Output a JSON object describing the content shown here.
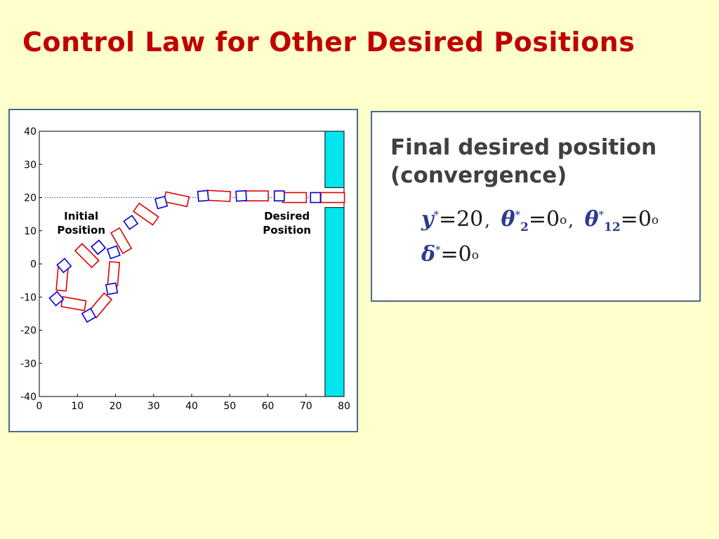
{
  "slide": {
    "title": "Control Law for Other Desired Positions"
  },
  "info": {
    "heading_line1": "Final desired position",
    "heading_line2": "(convergence)",
    "equations": [
      {
        "symbol": "y",
        "sup": "*",
        "sub": "",
        "value": "20"
      },
      {
        "symbol": "θ",
        "sup": "*",
        "sub": "2",
        "value": "0",
        "unit": "o"
      },
      {
        "symbol": "θ",
        "sup": "*",
        "sub": "12",
        "value": "0",
        "unit": "o"
      },
      {
        "symbol": "δ",
        "sup": "*",
        "sub": "",
        "value": "0",
        "unit": "o"
      }
    ],
    "sep": ","
  },
  "colors": {
    "title": "#c00000",
    "trailer": "#e00000",
    "truck": "#0000dd",
    "dock": "#00e5ee",
    "reference_line": "#0000cc"
  },
  "chart_data": {
    "type": "scatter",
    "title": "",
    "xlabel": "",
    "ylabel": "",
    "xlim": [
      0,
      80
    ],
    "ylim": [
      -40,
      40
    ],
    "xticks": [
      0,
      10,
      20,
      30,
      40,
      50,
      60,
      70,
      80
    ],
    "yticks": [
      40,
      30,
      20,
      10,
      0,
      -10,
      -20,
      -30,
      -40
    ],
    "grid": false,
    "reference_line_y": 20,
    "dock": {
      "x_from": 75,
      "x_to": 80,
      "y_from": -40,
      "y_to": 40,
      "gap_y": [
        17,
        23
      ]
    },
    "annotations": [
      {
        "line1": "Initial",
        "line2": "Position",
        "x": 11,
        "y": 12.5
      },
      {
        "line1": "Desired",
        "line2": "Position",
        "x": 65,
        "y": 12.5
      }
    ],
    "series": [
      {
        "type": "truck-trailer-poses",
        "values": [
          {
            "truck_x": 4.5,
            "truck_y": -10.5,
            "truck_angle": 40,
            "trailer_cx": 9,
            "trailer_cy": -12,
            "trailer_angle": -10
          },
          {
            "truck_x": 6.5,
            "truck_y": -0.5,
            "truck_angle": 40,
            "trailer_cx": 6,
            "trailer_cy": -4.5,
            "trailer_angle": 85
          },
          {
            "truck_x": 13,
            "truck_y": -15.5,
            "truck_angle": 30,
            "trailer_cx": 16,
            "trailer_cy": -12.5,
            "trailer_angle": 50
          },
          {
            "truck_x": 15.5,
            "truck_y": 5,
            "truck_angle": 40,
            "trailer_cx": 12.5,
            "trailer_cy": 2.5,
            "trailer_angle": -45
          },
          {
            "truck_x": 19,
            "truck_y": -7.5,
            "truck_angle": 10,
            "trailer_cx": 19.5,
            "trailer_cy": -3,
            "trailer_angle": 85
          },
          {
            "truck_x": 19.5,
            "truck_y": 3.5,
            "truck_angle": 20,
            "trailer_cx": 21.5,
            "trailer_cy": 7,
            "trailer_angle": -60
          },
          {
            "truck_x": 24,
            "truck_y": 12.5,
            "truck_angle": 35,
            "trailer_cx": 28,
            "trailer_cy": 15,
            "trailer_angle": -35
          },
          {
            "truck_x": 32,
            "truck_y": 18.5,
            "truck_angle": 15,
            "trailer_cx": 36,
            "trailer_cy": 19.5,
            "trailer_angle": -12
          },
          {
            "truck_x": 43,
            "truck_y": 20.5,
            "truck_angle": 5,
            "trailer_cx": 47,
            "trailer_cy": 20.5,
            "trailer_angle": -3
          },
          {
            "truck_x": 53,
            "truck_y": 20.5,
            "truck_angle": 3,
            "trailer_cx": 57,
            "trailer_cy": 20.5,
            "trailer_angle": 0
          },
          {
            "truck_x": 63,
            "truck_y": 20.5,
            "truck_angle": 0,
            "trailer_cx": 67,
            "trailer_cy": 20,
            "trailer_angle": 0
          },
          {
            "truck_x": 72.5,
            "truck_y": 20,
            "truck_angle": 0,
            "trailer_cx": 77,
            "trailer_cy": 20,
            "trailer_angle": 0
          }
        ]
      }
    ]
  }
}
